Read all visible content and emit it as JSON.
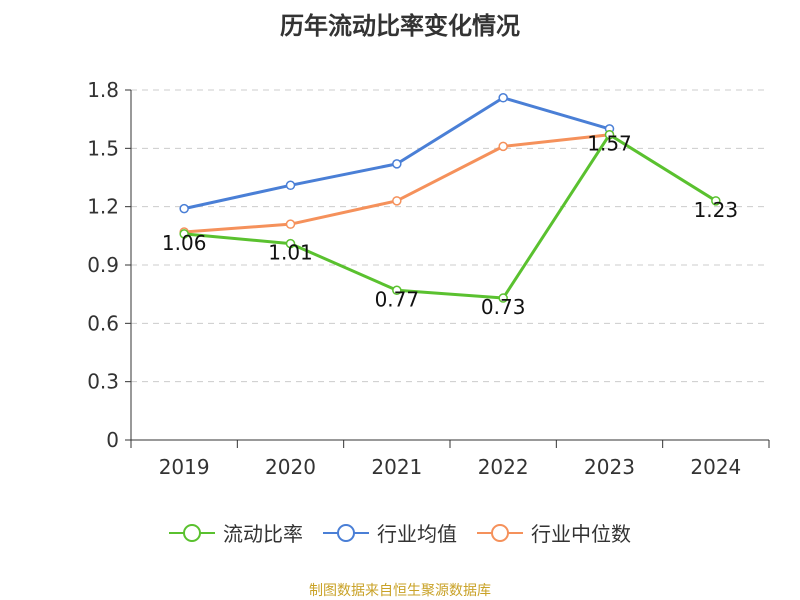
{
  "chart_data": {
    "type": "line",
    "title": "历年流动比率变化情况",
    "categories": [
      "2019",
      "2020",
      "2021",
      "2022",
      "2023",
      "2024"
    ],
    "y_ticks": [
      "0",
      "0.3",
      "0.6",
      "0.9",
      "1.2",
      "1.5",
      "1.8"
    ],
    "ylim": [
      0,
      1.8
    ],
    "grid": true,
    "legend_position": "bottom",
    "series": [
      {
        "name": "流动比率",
        "color": "#5ac12f",
        "values": [
          1.06,
          1.01,
          0.77,
          0.73,
          1.57,
          1.23
        ],
        "labels": [
          "1.06",
          "1.01",
          "0.77",
          "0.73",
          "1.57",
          "1.23"
        ]
      },
      {
        "name": "行业均值",
        "color": "#4a7fd6",
        "values": [
          1.19,
          1.31,
          1.42,
          1.76,
          1.6,
          null
        ]
      },
      {
        "name": "行业中位数",
        "color": "#f5915b",
        "values": [
          1.07,
          1.11,
          1.23,
          1.51,
          1.57,
          null
        ]
      }
    ]
  },
  "source": "制图数据来自恒生聚源数据库"
}
